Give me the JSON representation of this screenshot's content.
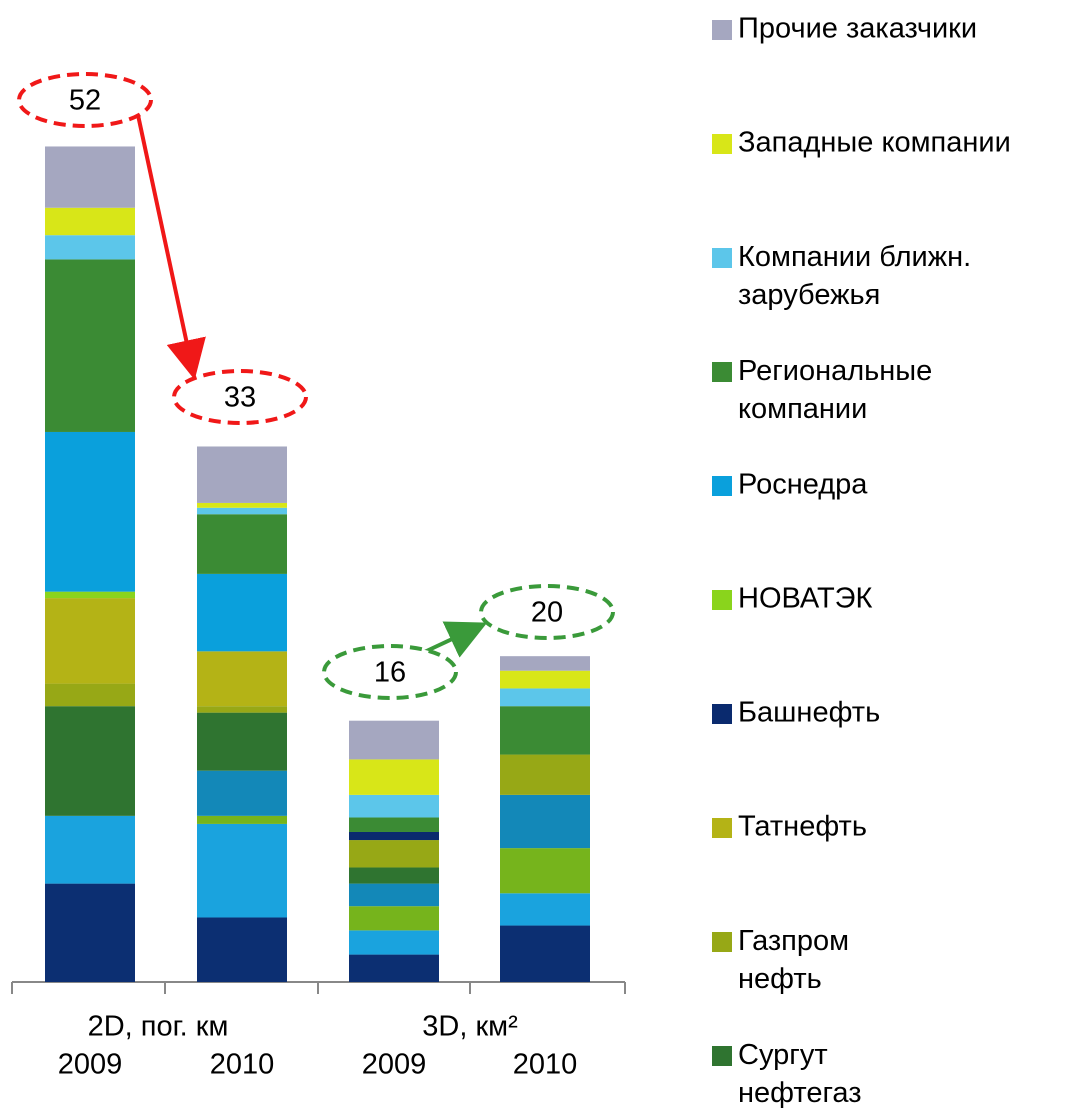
{
  "chart_data": {
    "type": "stacked_bar",
    "categories": [
      "2009",
      "2010",
      "2009",
      "2010"
    ],
    "groups": [
      "2D, пог. км",
      "3D, км²"
    ],
    "totals": [
      52,
      33,
      16,
      20
    ],
    "series": [
      {
        "color": "#0c2f72",
        "values": [
          6.1,
          4.0,
          1.7,
          3.5
        ]
      },
      {
        "color": "#1aa3de",
        "values": [
          4.2,
          5.8,
          1.5,
          2.0
        ]
      },
      {
        "color": "#76b41c",
        "values": [
          0,
          0.5,
          1.5,
          2.8
        ]
      },
      {
        "color": "#1388b8",
        "values": [
          0,
          2.8,
          1.4,
          3.3
        ]
      },
      {
        "name": "Сургут нефтегаз",
        "color": "#2f7430",
        "values": [
          6.8,
          3.6,
          1.0,
          0
        ]
      },
      {
        "name": "Газпром нефть",
        "color": "#97a816",
        "values": [
          1.4,
          0.4,
          1.7,
          2.5
        ]
      },
      {
        "name": "Татнефть",
        "color": "#b4b316",
        "values": [
          5.3,
          3.4,
          0,
          0
        ]
      },
      {
        "name": "Башнефть",
        "color": "#0a2a6e",
        "values": [
          0,
          0,
          0.5,
          0
        ]
      },
      {
        "name": "НОВАТЭК",
        "color": "#8ad41c",
        "values": [
          0.4,
          0,
          0,
          0
        ]
      },
      {
        "name": "Роснедра",
        "color": "#0aa0dc",
        "values": [
          9.9,
          4.8,
          0,
          0
        ]
      },
      {
        "name": "Региональные компании",
        "color": "#3b8b34",
        "values": [
          10.7,
          3.7,
          0.9,
          3.0
        ]
      },
      {
        "name": "Компании ближн. зарубежья",
        "color": "#5cc6ea",
        "values": [
          1.5,
          0.4,
          1.4,
          1.1
        ]
      },
      {
        "name": "Западные компании",
        "color": "#d8e618",
        "values": [
          1.7,
          0.3,
          2.2,
          1.1
        ]
      },
      {
        "name": "Прочие заказчики",
        "color": "#a5a7c0",
        "values": [
          3.8,
          3.5,
          2.4,
          0.9
        ]
      }
    ]
  }
}
